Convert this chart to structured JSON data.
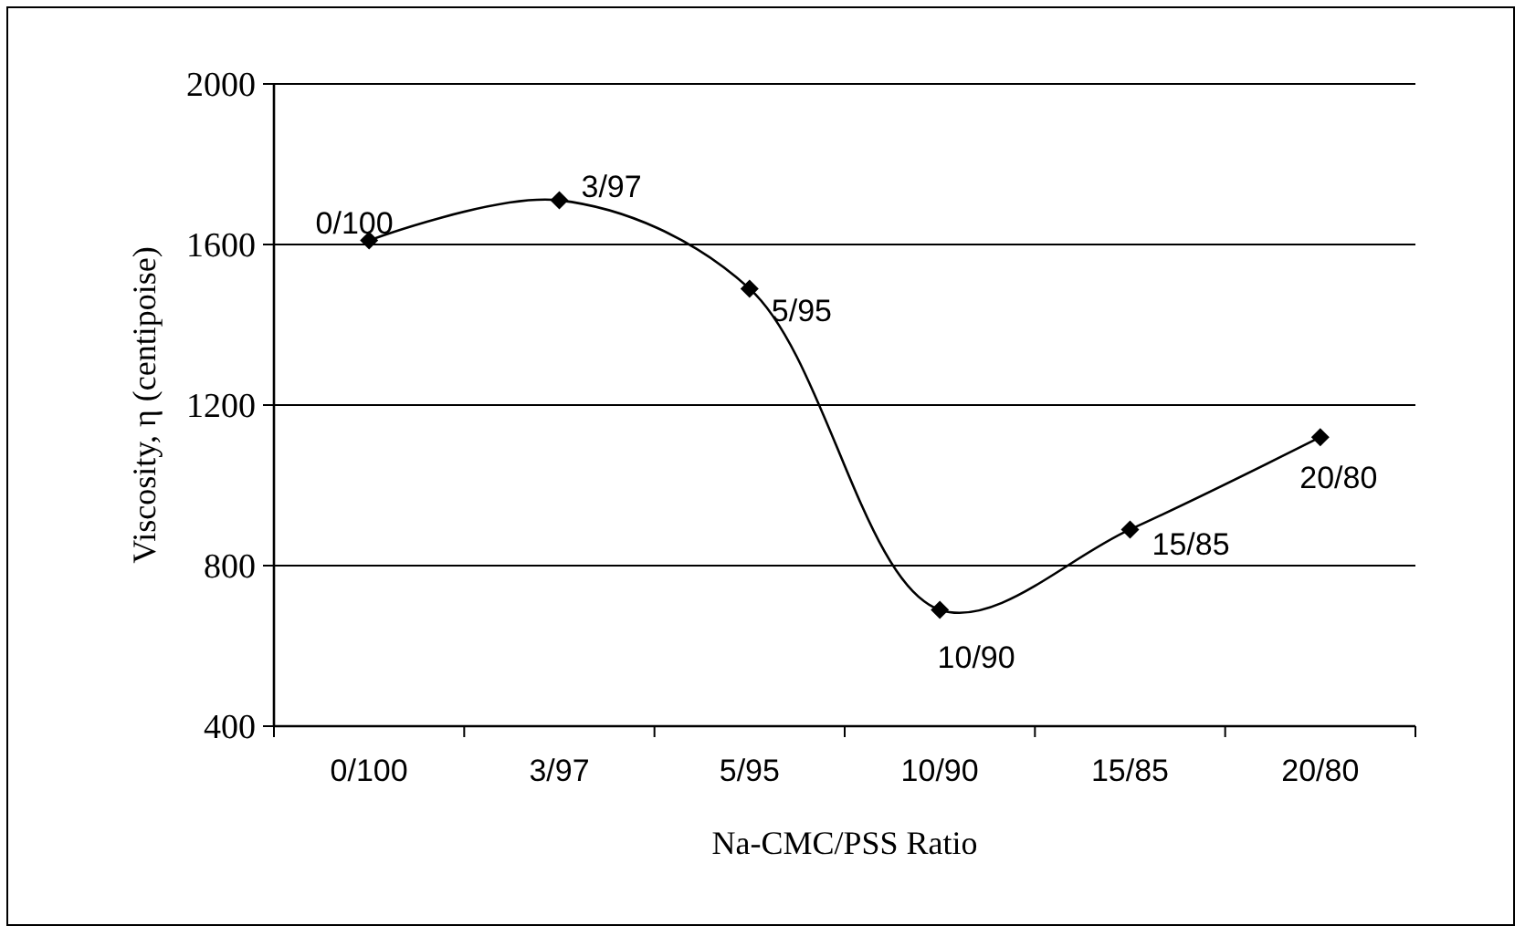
{
  "chart_data": {
    "type": "line",
    "categories": [
      "0/100",
      "3/97",
      "5/95",
      "10/90",
      "15/85",
      "20/80"
    ],
    "series": [
      {
        "color": "#000000",
        "values": [
          1610,
          1710,
          1490,
          690,
          890,
          1120
        ]
      }
    ],
    "xlabel": "Na-CMC/PSS Ratio",
    "ylabel": "Viscosity, η (centipoise)",
    "ylim": [
      400,
      2000
    ],
    "yticks": [
      400,
      800,
      1200,
      1600,
      2000
    ],
    "grid": "y",
    "marker": "diamond",
    "line_style": "solid",
    "annotations": [
      {
        "text": "0/100",
        "x": "0/100",
        "y": 1610
      },
      {
        "text": "3/97",
        "x": "3/97",
        "y": 1710
      },
      {
        "text": "5/95",
        "x": "5/95",
        "y": 1490
      },
      {
        "text": "10/90",
        "x": "10/90",
        "y": 690
      },
      {
        "text": "15/85",
        "x": "15/85",
        "y": 890
      },
      {
        "text": "20/80",
        "x": "20/80",
        "y": 1120
      }
    ]
  }
}
